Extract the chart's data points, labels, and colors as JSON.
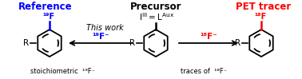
{
  "bg_color": "#ffffff",
  "title_ref": "Reference",
  "title_precursor": "Precursor",
  "title_pet": "PET tracer",
  "title_ref_color": "#0000ff",
  "title_precursor_color": "#000000",
  "title_pet_color": "#ff0000",
  "pet_tracer_color": "#ff0000",
  "this_work_text": "This work",
  "left_bottom_label": "stoichiometric ",
  "left_bottom_f": "¹⁹F⁻",
  "right_bottom_label": "traces of ",
  "right_bottom_f": "¹⁸F⁻",
  "left_arrow_label": "¹⁹F⁻",
  "right_arrow_label": "¹⁸F⁻",
  "left_arrow_label_color": "#0000ff",
  "right_arrow_label_color": "#ff0000",
  "ref_f_label": "¹⁹F",
  "pet_f_label": "¹⁸F",
  "ref_f_color": "#0000ff",
  "pet_f_color": "#ff0000",
  "figsize": [
    3.78,
    0.99
  ],
  "dpi": 100
}
